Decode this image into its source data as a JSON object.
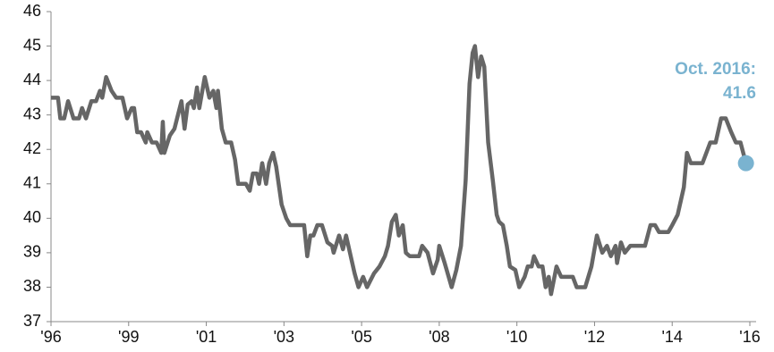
{
  "chart_data": {
    "type": "line",
    "xlim": [
      0,
      9
    ],
    "xticks": [
      {
        "value": 0,
        "label": "'96"
      },
      {
        "value": 1,
        "label": "'99"
      },
      {
        "value": 2,
        "label": "'01"
      },
      {
        "value": 3,
        "label": "'03"
      },
      {
        "value": 4,
        "label": "'05"
      },
      {
        "value": 5,
        "label": "'08"
      },
      {
        "value": 6,
        "label": "'10"
      },
      {
        "value": 7,
        "label": "'12"
      },
      {
        "value": 8,
        "label": "'14"
      },
      {
        "value": 9,
        "label": "'16"
      }
    ],
    "ylim": [
      37,
      46
    ],
    "yticks": [
      37,
      38,
      39,
      40,
      41,
      42,
      43,
      44,
      45,
      46
    ],
    "series": [
      {
        "color": "#666666",
        "x": [
          0,
          0.09,
          0.12,
          0.17,
          0.22,
          0.29,
          0.36,
          0.4,
          0.45,
          0.52,
          0.58,
          0.63,
          0.66,
          0.71,
          0.78,
          0.84,
          0.92,
          0.98,
          1.04,
          1.07,
          1.11,
          1.16,
          1.22,
          1.24,
          1.3,
          1.36,
          1.42,
          1.44,
          1.46,
          1.53,
          1.59,
          1.68,
          1.72,
          1.76,
          1.81,
          1.84,
          1.88,
          1.91,
          1.98,
          2.04,
          2.09,
          2.13,
          2.15,
          2.2,
          2.25,
          2.32,
          2.37,
          2.41,
          2.51,
          2.56,
          2.6,
          2.65,
          2.68,
          2.72,
          2.77,
          2.81,
          2.86,
          2.9,
          2.97,
          3.03,
          3.08,
          3.26,
          3.3,
          3.34,
          3.38,
          3.43,
          3.49,
          3.56,
          3.62,
          3.64,
          3.71,
          3.76,
          3.8,
          3.87,
          3.91,
          3.96,
          4.02,
          4.07,
          4.16,
          4.23,
          4.3,
          4.34,
          4.39,
          4.44,
          4.48,
          4.53,
          4.57,
          4.62,
          4.74,
          4.78,
          4.85,
          4.92,
          4.98,
          5.0,
          5.07,
          5.16,
          5.22,
          5.28,
          5.34,
          5.39,
          5.43,
          5.46,
          5.5,
          5.54,
          5.58,
          5.63,
          5.69,
          5.74,
          5.77,
          5.82,
          5.87,
          5.91,
          5.98,
          6.03,
          6.1,
          6.14,
          6.19,
          6.22,
          6.28,
          6.33,
          6.37,
          6.41,
          6.44,
          6.51,
          6.57,
          6.72,
          6.77,
          6.88,
          6.96,
          7.03,
          7.1,
          7.16,
          7.21,
          7.27,
          7.29,
          7.34,
          7.39,
          7.46,
          7.65,
          7.72,
          7.78,
          7.83,
          7.95,
          8.0,
          8.07,
          8.15,
          8.19,
          8.24,
          8.39,
          8.49,
          8.56,
          8.63,
          8.69,
          8.76,
          8.82,
          8.88,
          8.95
        ],
        "values": [
          43.5,
          43.5,
          42.9,
          42.9,
          43.4,
          42.9,
          42.9,
          43.2,
          42.9,
          43.4,
          43.4,
          43.7,
          43.5,
          44.1,
          43.7,
          43.5,
          43.5,
          42.9,
          43.2,
          43.2,
          42.5,
          42.5,
          42.2,
          42.5,
          42.2,
          42.2,
          41.9,
          42.8,
          41.9,
          42.4,
          42.6,
          43.4,
          42.6,
          43.3,
          43.4,
          43.2,
          43.8,
          43.2,
          44.1,
          43.5,
          43.7,
          43.2,
          43.7,
          42.6,
          42.2,
          42.2,
          41.7,
          41.0,
          41.0,
          40.8,
          41.3,
          41.3,
          41.0,
          41.6,
          41.0,
          41.6,
          41.9,
          41.5,
          40.4,
          40.0,
          39.8,
          39.8,
          38.9,
          39.5,
          39.5,
          39.8,
          39.8,
          39.3,
          39.2,
          39.0,
          39.5,
          39.1,
          39.5,
          38.8,
          38.4,
          38.0,
          38.3,
          38.0,
          38.4,
          38.6,
          38.9,
          39.2,
          39.9,
          40.1,
          39.5,
          39.8,
          39.0,
          38.9,
          38.9,
          39.2,
          39.0,
          38.4,
          38.8,
          39.2,
          38.7,
          38.0,
          38.5,
          39.2,
          41.1,
          43.9,
          44.8,
          45.0,
          44.1,
          44.7,
          44.4,
          42.2,
          41.1,
          40.1,
          39.9,
          39.8,
          39.2,
          38.6,
          38.5,
          38.0,
          38.3,
          38.6,
          38.6,
          38.9,
          38.6,
          38.6,
          38.0,
          38.3,
          37.8,
          38.6,
          38.3,
          38.3,
          38.0,
          38.0,
          38.6,
          39.5,
          39.0,
          39.2,
          38.9,
          39.2,
          38.7,
          39.3,
          39.0,
          39.2,
          39.2,
          39.8,
          39.8,
          39.6,
          39.6,
          39.8,
          40.1,
          40.9,
          41.9,
          41.6,
          41.6,
          42.2,
          42.2,
          42.9,
          42.9,
          42.5,
          42.2,
          42.2,
          41.6
        ]
      }
    ],
    "annotation": {
      "label": "Oct. 2016:",
      "value": 41.6,
      "color": "#7ab3d0"
    }
  }
}
